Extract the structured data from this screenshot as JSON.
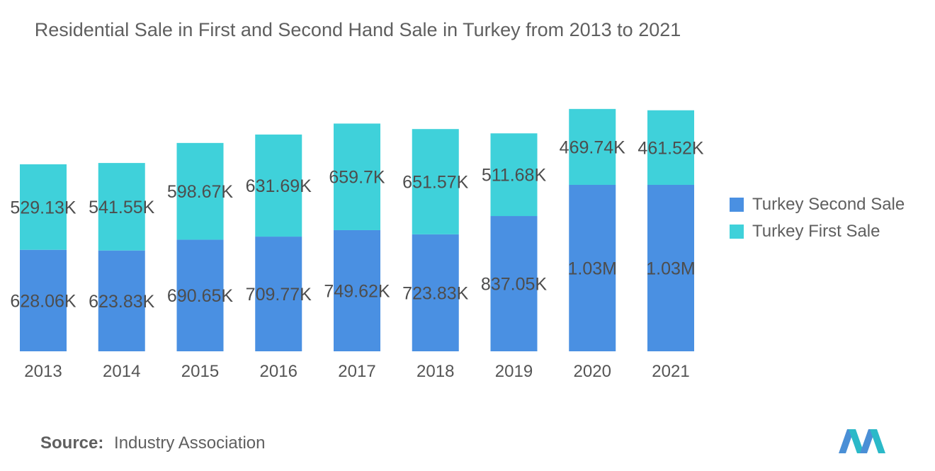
{
  "title": "Residential Sale in First and Second Hand Sale in Turkey from 2013 to 2021",
  "source": {
    "label": "Source:",
    "text": "Industry Association"
  },
  "colors": {
    "second_sale": "#4a90e2",
    "first_sale": "#3fd1da",
    "label_text": "#4d4d4d"
  },
  "logo_icon": "mordor-intelligence-logo",
  "chart_data": {
    "type": "bar",
    "stacked": true,
    "categories": [
      "2013",
      "2014",
      "2015",
      "2016",
      "2017",
      "2018",
      "2019",
      "2020",
      "2021"
    ],
    "series": [
      {
        "name": "Turkey Second Sale",
        "values": [
          628060,
          623830,
          690650,
          709770,
          749620,
          723830,
          837050,
          1030000,
          1030000
        ],
        "labels": [
          "628.06K",
          "623.83K",
          "690.65K",
          "709.77K",
          "749.62K",
          "723.83K",
          "837.05K",
          "1.03M",
          "1.03M"
        ]
      },
      {
        "name": "Turkey First Sale",
        "values": [
          529130,
          541550,
          598670,
          631690,
          659700,
          651570,
          511680,
          469740,
          461520
        ],
        "labels": [
          "529.13K",
          "541.55K",
          "598.67K",
          "631.69K",
          "659.7K",
          "651.57K",
          "511.68K",
          "469.74K",
          "461.52K"
        ]
      }
    ],
    "legend_position": "right",
    "grid": false,
    "y_axis_visible": false
  }
}
